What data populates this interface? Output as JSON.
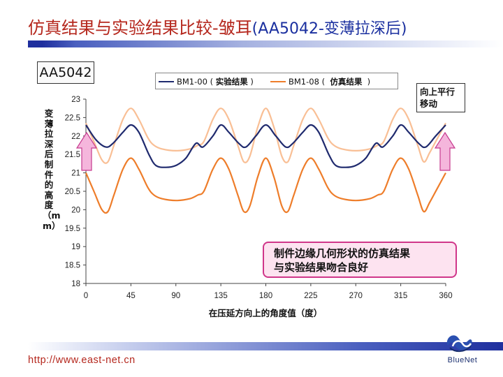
{
  "slide": {
    "title_main": "仿真结果与实验结果比较-皱耳",
    "title_suffix": "(AA5042-变薄拉深后)",
    "sample_label": "AA5042",
    "callout_shift": "向上平行\n移动",
    "callout_note": "制件边缘几何形状的仿真结果\n与实验结果吻合良好",
    "footer_url": "http://www.east-net.cn",
    "brand": "BlueNet"
  },
  "colors": {
    "title": "#b5271d",
    "title_suffix": "#1a2f9f",
    "experiment_series": "#1f2a6e",
    "simulation_series": "#ee7d2a",
    "simulation_shifted_series": "#f9bf95",
    "arrow_fill": "#f5b6dc",
    "arrow_stroke": "#c63a8e",
    "callout_fill": "#fde3f0"
  },
  "chart_data": {
    "type": "line",
    "xlabel": "在压延方向上的角度值（度）",
    "ylabel": "变薄拉深后制件的高度（mm）",
    "xlim": [
      0,
      360
    ],
    "ylim": [
      18,
      23
    ],
    "xticks": [
      0,
      45,
      90,
      135,
      180,
      225,
      270,
      315,
      360
    ],
    "yticks": [
      18,
      18.5,
      19,
      19.5,
      20,
      20.5,
      21,
      21.5,
      22,
      22.5,
      23
    ],
    "grid": false,
    "legend_position": "top",
    "legend": [
      {
        "name": "BM1-00",
        "tag": "实验结果",
        "color": "#1f2a6e"
      },
      {
        "name": "BM1-08",
        "tag": "仿真结果",
        "color": "#ee7d2a"
      }
    ],
    "series": [
      {
        "name": "BM1-00",
        "color": "#1f2a6e",
        "x": [
          0,
          10,
          20,
          27,
          37,
          45,
          53,
          63,
          70,
          80,
          90,
          100,
          110,
          117,
          127,
          135,
          143,
          153,
          160,
          170,
          180,
          190,
          200,
          207,
          217,
          225,
          233,
          243,
          250,
          260,
          270,
          280,
          290,
          297,
          307,
          315,
          323,
          333,
          340,
          350,
          360
        ],
        "y": [
          22.3,
          21.9,
          21.7,
          21.8,
          22.1,
          22.3,
          22.1,
          21.5,
          21.2,
          21.15,
          21.2,
          21.4,
          21.8,
          21.7,
          22.0,
          22.3,
          22.1,
          21.8,
          21.7,
          22.0,
          22.3,
          22.0,
          21.7,
          21.8,
          22.1,
          22.3,
          22.1,
          21.5,
          21.2,
          21.15,
          21.2,
          21.4,
          21.8,
          21.7,
          22.0,
          22.3,
          22.1,
          21.8,
          21.7,
          22.0,
          22.3
        ]
      },
      {
        "name": "BM1-08",
        "color": "#ee7d2a",
        "x": [
          0,
          8,
          16,
          22,
          28,
          37,
          45,
          53,
          62,
          68,
          76,
          90,
          104,
          112,
          118,
          127,
          135,
          143,
          152,
          158,
          164,
          172,
          180,
          188,
          196,
          202,
          208,
          217,
          225,
          233,
          242,
          248,
          256,
          270,
          284,
          292,
          298,
          307,
          315,
          323,
          332,
          338,
          344,
          352,
          360
        ],
        "y": [
          21.0,
          20.5,
          20.0,
          19.95,
          20.4,
          21.1,
          21.4,
          21.1,
          20.6,
          20.4,
          20.3,
          20.25,
          20.3,
          20.4,
          20.5,
          21.1,
          21.4,
          21.1,
          20.4,
          19.95,
          20.1,
          20.9,
          21.4,
          20.9,
          20.1,
          19.95,
          20.4,
          21.1,
          21.4,
          21.1,
          20.6,
          20.4,
          20.3,
          20.25,
          20.3,
          20.4,
          20.5,
          21.1,
          21.4,
          21.1,
          20.4,
          19.95,
          20.2,
          20.6,
          21.0
        ]
      },
      {
        "name": "BM1-08",
        "color": "#f9bf95",
        "x": [
          0,
          8,
          16,
          22,
          28,
          37,
          45,
          53,
          62,
          68,
          76,
          90,
          104,
          112,
          118,
          127,
          135,
          143,
          152,
          158,
          164,
          172,
          180,
          188,
          196,
          202,
          208,
          217,
          225,
          233,
          242,
          248,
          256,
          270,
          284,
          292,
          298,
          307,
          315,
          323,
          332,
          338,
          344,
          352,
          360
        ],
        "y": [
          22.35,
          21.85,
          21.35,
          21.3,
          21.75,
          22.45,
          22.75,
          22.45,
          21.95,
          21.75,
          21.65,
          21.6,
          21.65,
          21.75,
          21.85,
          22.45,
          22.75,
          22.45,
          21.75,
          21.3,
          21.45,
          22.25,
          22.75,
          22.25,
          21.45,
          21.3,
          21.75,
          22.45,
          22.75,
          22.45,
          21.95,
          21.75,
          21.65,
          21.6,
          21.65,
          21.75,
          21.85,
          22.45,
          22.75,
          22.45,
          21.75,
          21.3,
          21.55,
          21.95,
          22.35
        ]
      }
    ]
  }
}
